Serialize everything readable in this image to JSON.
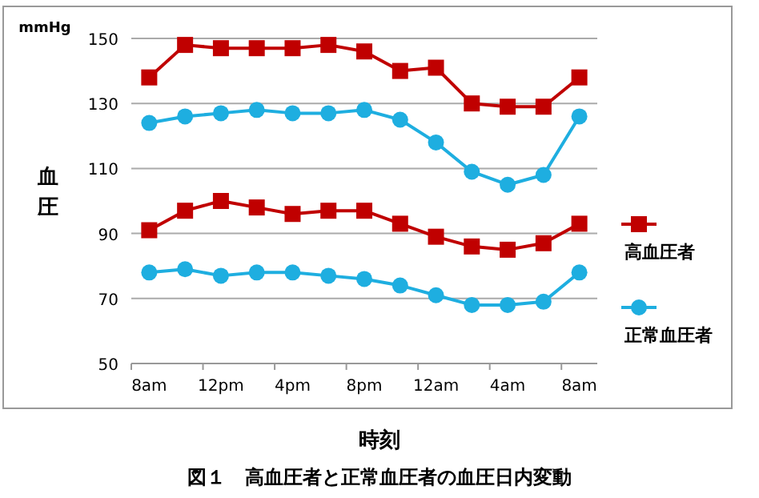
{
  "chart_data": {
    "type": "line",
    "xlabel": "時刻",
    "ylabel": "血圧",
    "annotations": [
      "mmHg",
      "図１　高血圧者と正常血圧者の血圧日内変動"
    ],
    "categories": [
      "8am",
      null,
      "12pm",
      null,
      "4pm",
      null,
      "8pm",
      null,
      "12am",
      null,
      "4am",
      null,
      "8am"
    ],
    "ylim": [
      50,
      150
    ],
    "yticks": [
      50,
      70,
      90,
      110,
      130,
      150
    ],
    "grid": "y",
    "legend": "right",
    "line_style": "solid",
    "series": [
      {
        "name": "高血圧者",
        "color": "#c00000",
        "marker": "square",
        "values": [
          138,
          148,
          147,
          147,
          147,
          148,
          146,
          140,
          141,
          130,
          129,
          129,
          138
        ]
      },
      {
        "name": "正常血圧者",
        "color": "#1eaee0",
        "marker": "circle",
        "values": [
          124,
          126,
          127,
          128,
          127,
          127,
          128,
          125,
          118,
          109,
          105,
          108,
          126
        ]
      },
      {
        "color": "#c00000",
        "marker": "square",
        "values": [
          91,
          97,
          100,
          98,
          96,
          97,
          97,
          93,
          89,
          86,
          85,
          87,
          93
        ]
      },
      {
        "color": "#1eaee0",
        "marker": "circle",
        "values": [
          78,
          79,
          77,
          78,
          78,
          77,
          76,
          74,
          71,
          68,
          68,
          69,
          78
        ]
      }
    ]
  }
}
